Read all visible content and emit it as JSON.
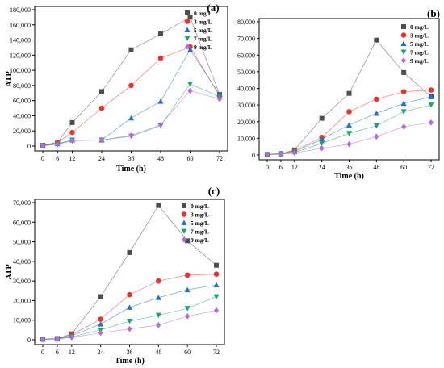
{
  "colors": {
    "s0": "#4d4d4d",
    "s3": "#e8342c",
    "s5": "#1f6fd1",
    "s7": "#1aa36a",
    "s9": "#b36ae2"
  },
  "chart_data": [
    {
      "panel": "(a)",
      "type": "line",
      "xlabel": "Time (h)",
      "ylabel": "ATP",
      "x": [
        0,
        6,
        12,
        24,
        36,
        48,
        60,
        72
      ],
      "xticks": [
        "0",
        "6",
        "12",
        "24",
        "36",
        "48",
        "60",
        "72"
      ],
      "ylim": [
        0,
        180000
      ],
      "yticks": [
        "0",
        "20,000",
        "40,000",
        "60,000",
        "80,000",
        "100,000",
        "120,000",
        "140,000",
        "160,000",
        "180,000"
      ],
      "ytick_values": [
        0,
        20000,
        40000,
        60000,
        80000,
        100000,
        120000,
        140000,
        160000,
        180000
      ],
      "legend_position": "top-right",
      "series": [
        {
          "name": "0 mg/L",
          "marker": "square",
          "values": [
            1000,
            5000,
            31000,
            72000,
            127000,
            148000,
            170000,
            68000
          ]
        },
        {
          "name": "3 mg/L",
          "marker": "circle",
          "values": [
            500,
            5000,
            18000,
            50000,
            80000,
            116000,
            131000,
            66000
          ]
        },
        {
          "name": "5 mg/L",
          "marker": "triangle-up",
          "values": [
            500,
            3000,
            8000,
            8000,
            37000,
            59000,
            127000,
            68000
          ]
        },
        {
          "name": "7 mg/L",
          "marker": "triangle-down",
          "values": [
            500,
            3000,
            8000,
            8000,
            13000,
            27000,
            82000,
            65000
          ]
        },
        {
          "name": "9 mg/L",
          "marker": "diamond",
          "values": [
            500,
            2000,
            7000,
            8000,
            14000,
            28000,
            73000,
            62000
          ]
        }
      ]
    },
    {
      "panel": "(b)",
      "type": "line",
      "xlabel": "Time (h)",
      "ylabel": "",
      "x": [
        0,
        6,
        12,
        24,
        36,
        48,
        60,
        72
      ],
      "xticks": [
        "0",
        "6",
        "12",
        "24",
        "36",
        "48",
        "60",
        "72"
      ],
      "ylim": [
        0,
        80000
      ],
      "yticks": [
        "0",
        "10,000",
        "20,000",
        "30,000",
        "40,000",
        "50,000",
        "60,000",
        "70,000",
        "80,000"
      ],
      "ytick_values": [
        0,
        10000,
        20000,
        30000,
        40000,
        50000,
        60000,
        70000,
        80000
      ],
      "legend_position": "top-right",
      "series": [
        {
          "name": "0 mg/L",
          "marker": "square",
          "values": [
            300,
            800,
            3000,
            22000,
            37000,
            69000,
            49500,
            35000
          ]
        },
        {
          "name": "3 mg/L",
          "marker": "circle",
          "values": [
            300,
            700,
            2500,
            10500,
            26000,
            33500,
            38000,
            39000
          ]
        },
        {
          "name": "5 mg/L",
          "marker": "triangle-up",
          "values": [
            300,
            600,
            2000,
            9500,
            18000,
            25000,
            31000,
            35000
          ]
        },
        {
          "name": "7 mg/L",
          "marker": "triangle-down",
          "values": [
            200,
            500,
            1500,
            7000,
            13000,
            17500,
            26000,
            30000
          ]
        },
        {
          "name": "9 mg/L",
          "marker": "diamond",
          "values": [
            200,
            400,
            1200,
            4000,
            6500,
            11000,
            17000,
            19500
          ]
        }
      ]
    },
    {
      "panel": "(c)",
      "type": "line",
      "xlabel": "Time (h)",
      "ylabel": "ATP",
      "x": [
        0,
        6,
        12,
        24,
        36,
        48,
        60,
        72
      ],
      "xticks": [
        "0",
        "6",
        "12",
        "24",
        "36",
        "48",
        "60",
        "72"
      ],
      "ylim": [
        0,
        70000
      ],
      "yticks": [
        "0",
        "10,000",
        "20,000",
        "30,000",
        "40,000",
        "50,000",
        "60,000",
        "70,000"
      ],
      "ytick_values": [
        0,
        10000,
        20000,
        30000,
        40000,
        50000,
        60000,
        70000
      ],
      "legend_position": "top-right",
      "series": [
        {
          "name": "0 mg/L",
          "marker": "square",
          "values": [
            300,
            600,
            3000,
            22000,
            44500,
            68500,
            50500,
            38000
          ]
        },
        {
          "name": "3 mg/L",
          "marker": "circle",
          "values": [
            300,
            500,
            2500,
            10500,
            23000,
            30000,
            33000,
            33500
          ]
        },
        {
          "name": "5 mg/L",
          "marker": "triangle-up",
          "values": [
            300,
            500,
            2000,
            8000,
            16500,
            21500,
            25500,
            28000
          ]
        },
        {
          "name": "7 mg/L",
          "marker": "triangle-down",
          "values": [
            200,
            400,
            1500,
            5000,
            9500,
            12500,
            16000,
            22000
          ]
        },
        {
          "name": "9 mg/L",
          "marker": "diamond",
          "values": [
            200,
            300,
            1200,
            3500,
            5500,
            7500,
            12000,
            15000
          ]
        }
      ]
    }
  ]
}
